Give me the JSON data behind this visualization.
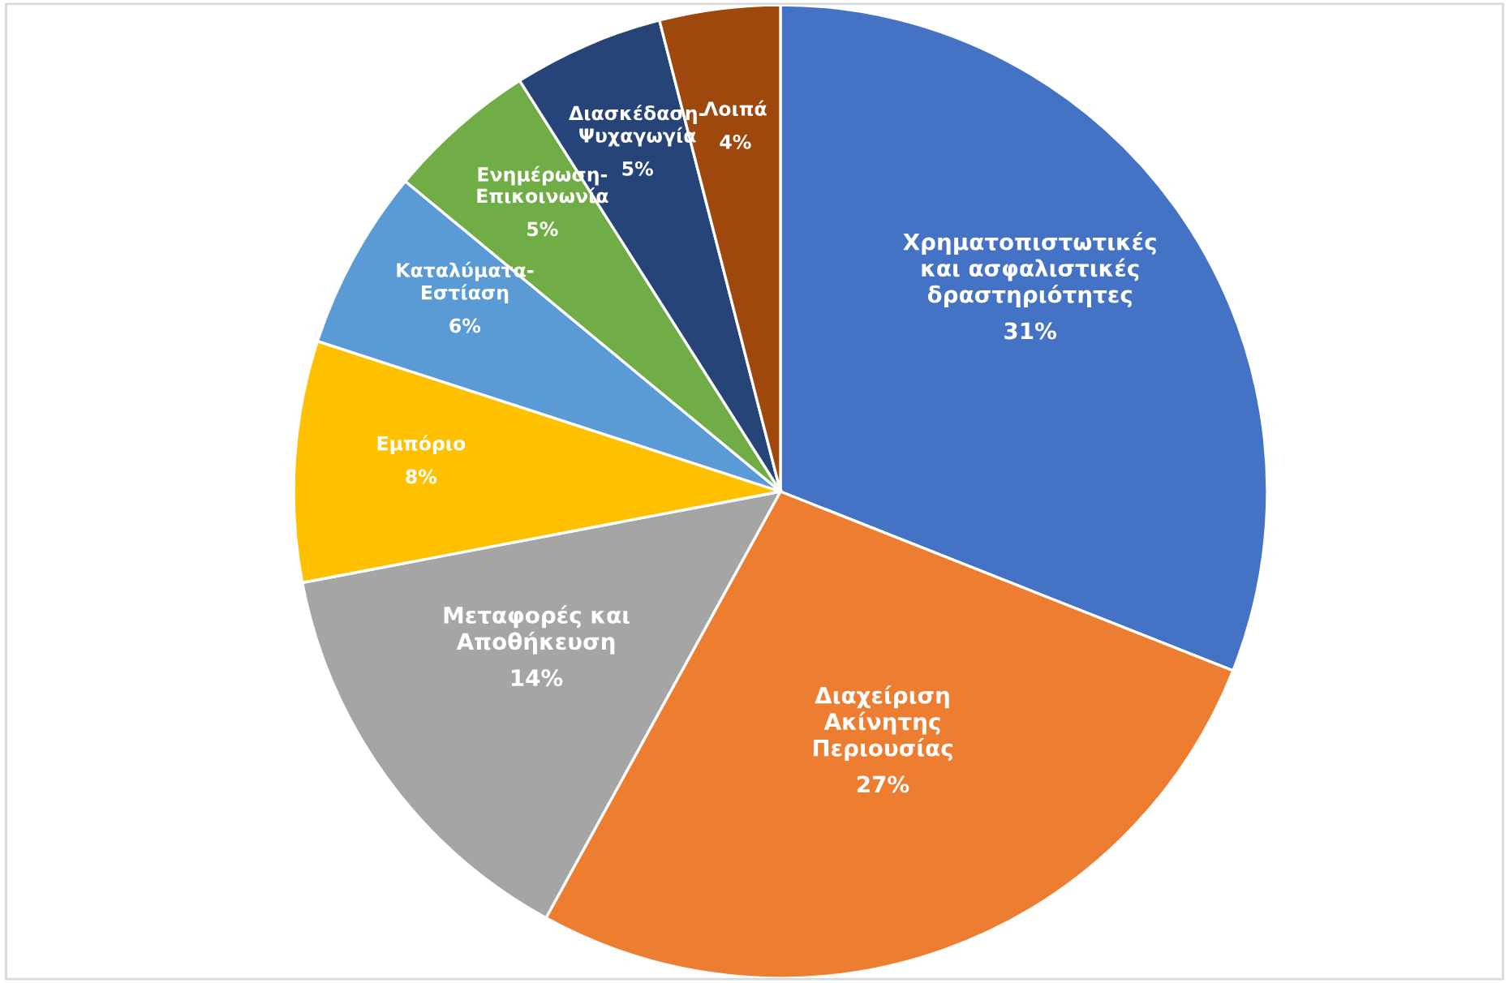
{
  "chart_data": {
    "type": "pie",
    "categories": [
      "Χρηματοπιστωτικές\nκαι ασφαλιστικές\nδραστηριότητες",
      "Διαχείριση\nΑκίνητης\nΠεριουσίας",
      "Μεταφορές και\nΑποθήκευση",
      "Εμπόριο",
      "Καταλύματα-\nΕστίαση",
      "Ενημέρωση-\nΕπικοινωνία",
      "Διασκέδαση-\nΨυχαγωγία",
      "Λοιπά"
    ],
    "values": [
      31,
      27,
      14,
      8,
      6,
      5,
      5,
      4
    ],
    "colors": [
      "#4472c4",
      "#ed7d31",
      "#a5a5a5",
      "#ffc000",
      "#5b9bd5",
      "#70ad47",
      "#264478",
      "#9e480e"
    ],
    "value_labels": [
      "31%",
      "27%",
      "14%",
      "8%",
      "6%",
      "5%",
      "5%",
      "4%"
    ],
    "legend": false
  }
}
